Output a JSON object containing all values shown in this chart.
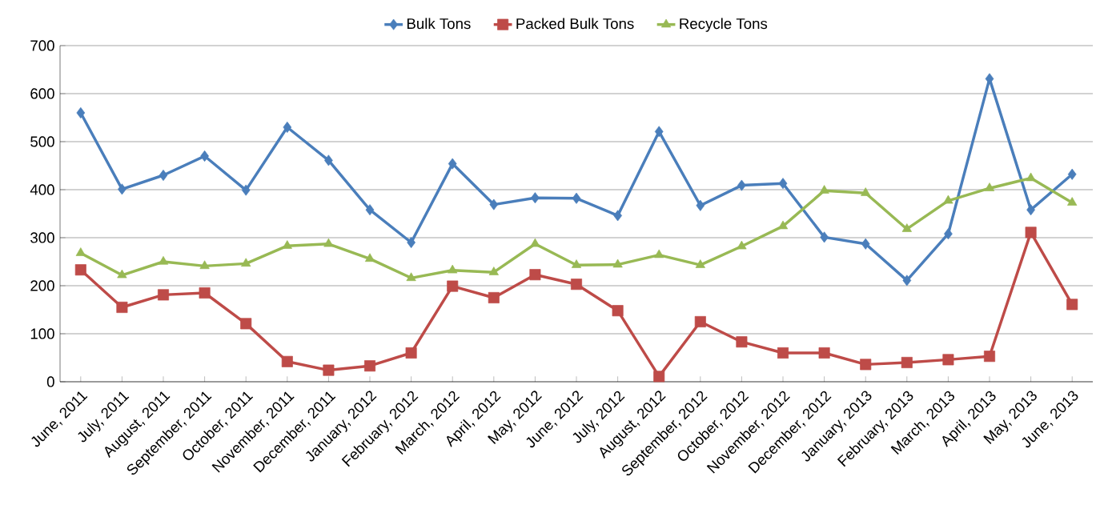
{
  "chart_data": {
    "type": "line",
    "categories": [
      "June, 2011",
      "July, 2011",
      "August, 2011",
      "September, 2011",
      "October, 2011",
      "November, 2011",
      "December, 2011",
      "January, 2012",
      "February, 2012",
      "March, 2012",
      "April, 2012",
      "May, 2012",
      "June, 2012",
      "July, 2012",
      "August, 2012",
      "September, 2012",
      "October, 2012",
      "November, 2012",
      "December, 2012",
      "January, 2013",
      "February, 2013",
      "March, 2013",
      "April, 2013",
      "May, 2013",
      "June, 2013"
    ],
    "series": [
      {
        "name": "Bulk Tons",
        "color": "#4a7ebb",
        "marker": "diamond",
        "values": [
          560,
          401,
          430,
          470,
          399,
          530,
          461,
          358,
          290,
          454,
          369,
          383,
          382,
          346,
          521,
          367,
          409,
          413,
          301,
          287,
          211,
          308,
          631,
          358,
          432
        ]
      },
      {
        "name": "Packed Bulk Tons",
        "color": "#be4b48",
        "marker": "square",
        "values": [
          233,
          155,
          181,
          185,
          121,
          42,
          24,
          33,
          60,
          199,
          175,
          223,
          203,
          148,
          11,
          125,
          83,
          60,
          60,
          36,
          40,
          46,
          53,
          311,
          161
        ]
      },
      {
        "name": "Recycle Tons",
        "color": "#98b954",
        "marker": "triangle",
        "values": [
          268,
          222,
          250,
          241,
          246,
          283,
          287,
          256,
          216,
          232,
          228,
          287,
          243,
          244,
          264,
          243,
          282,
          324,
          398,
          393,
          318,
          377,
          403,
          424,
          373
        ]
      }
    ],
    "ylim": [
      0,
      700
    ],
    "yticks": [
      0,
      100,
      200,
      300,
      400,
      500,
      600,
      700
    ],
    "grid": "y",
    "legend": "top",
    "line_style": "solid"
  }
}
